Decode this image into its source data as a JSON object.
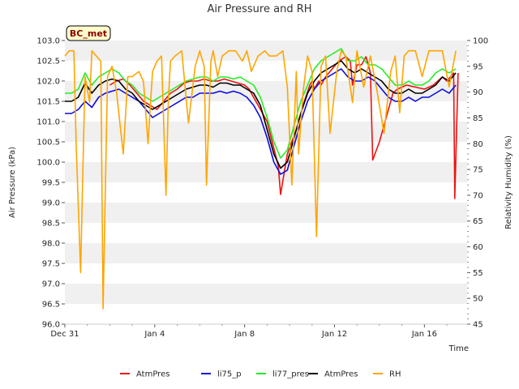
{
  "chart_data": {
    "type": "line",
    "title": "Air Pressure and RH",
    "badge": "BC_met",
    "xlabel": "Time",
    "ylabel": "Air Pressure (kPa)",
    "y2label": "Relativity Humidity (%)",
    "x_ticks": [
      {
        "label": "Dec 31",
        "day": 0
      },
      {
        "label": "Jan 4",
        "day": 4
      },
      {
        "label": "Jan 8",
        "day": 8
      },
      {
        "label": "Jan 12",
        "day": 12
      },
      {
        "label": "Jan 16",
        "day": 16
      }
    ],
    "xlim": [
      0,
      17.9
    ],
    "ylim": [
      96.0,
      103.0
    ],
    "y_ticks": [
      "96.0",
      "96.5",
      "97.0",
      "97.5",
      "98.0",
      "98.5",
      "99.0",
      "99.5",
      "100.0",
      "100.5",
      "101.0",
      "101.5",
      "102.0",
      "102.5",
      "103.0"
    ],
    "y2lim": [
      45,
      100
    ],
    "y2_ticks": [
      "45",
      "50",
      "55",
      "60",
      "65",
      "70",
      "75",
      "80",
      "85",
      "90",
      "95",
      "100"
    ],
    "grid": "horizontal bands",
    "legend_position": "bottom",
    "series": [
      {
        "name": "AtmPres",
        "axis": "left",
        "color": "#ee1111",
        "x": [
          2.0,
          2.3,
          2.6,
          2.9,
          3.2,
          3.5,
          3.8,
          4.1,
          4.4,
          4.7,
          5.0,
          5.3,
          5.6,
          5.9,
          6.2,
          6.5,
          6.8,
          7.1,
          7.4,
          7.7,
          8.0,
          8.2,
          9.0,
          9.5,
          9.6,
          9.9,
          10.3,
          10.6,
          10.9,
          11.0,
          11.1,
          11.3,
          11.4,
          11.6,
          11.9,
          12.2,
          12.5,
          12.7,
          12.8,
          13.0,
          13.2,
          13.4,
          13.6,
          13.7,
          14.0,
          14.6,
          14.8,
          15.2,
          15.6,
          16.0,
          16.4,
          16.8,
          17.0,
          17.3,
          17.35,
          17.5
        ],
        "y": [
          101.9,
          102.0,
          102.05,
          101.9,
          101.7,
          101.5,
          101.4,
          101.3,
          101.5,
          101.7,
          101.8,
          101.95,
          102.0,
          102.0,
          102.05,
          102.0,
          102.0,
          102.05,
          102.0,
          101.95,
          101.9,
          101.8,
          101.0,
          99.9,
          99.2,
          100.2,
          100.8,
          101.4,
          101.9,
          102.0,
          101.8,
          102.0,
          101.9,
          102.1,
          102.3,
          102.5,
          102.6,
          102.5,
          101.9,
          102.4,
          102.4,
          102.6,
          102.2,
          100.05,
          100.5,
          101.7,
          101.8,
          101.9,
          101.85,
          101.8,
          101.9,
          102.1,
          102.0,
          102.2,
          99.1,
          102.2
        ]
      },
      {
        "name": "li75_p",
        "axis": "left",
        "color": "#0a0ae0",
        "x": [
          0.0,
          0.3,
          0.6,
          0.9,
          1.2,
          1.5,
          1.8,
          2.1,
          2.4,
          2.7,
          3.0,
          3.3,
          3.6,
          3.9,
          4.2,
          4.5,
          4.8,
          5.1,
          5.4,
          5.7,
          6.0,
          6.3,
          6.6,
          6.9,
          7.2,
          7.5,
          7.8,
          8.1,
          8.4,
          8.7,
          9.0,
          9.3,
          9.6,
          9.9,
          10.2,
          10.5,
          10.8,
          11.1,
          11.4,
          11.7,
          12.0,
          12.3,
          12.6,
          12.9,
          13.2,
          13.5,
          13.8,
          14.1,
          14.4,
          14.7,
          15.0,
          15.3,
          15.6,
          15.9,
          16.2,
          16.5,
          16.8,
          17.1,
          17.4
        ],
        "y": [
          101.2,
          101.2,
          101.3,
          101.5,
          101.35,
          101.6,
          101.7,
          101.75,
          101.8,
          101.7,
          101.6,
          101.5,
          101.3,
          101.1,
          101.2,
          101.3,
          101.4,
          101.5,
          101.6,
          101.6,
          101.7,
          101.7,
          101.7,
          101.75,
          101.7,
          101.75,
          101.7,
          101.6,
          101.4,
          101.1,
          100.6,
          100.0,
          99.7,
          99.8,
          100.4,
          101.0,
          101.5,
          101.8,
          102.0,
          102.1,
          102.2,
          102.3,
          102.1,
          102.0,
          102.0,
          102.1,
          102.0,
          101.8,
          101.6,
          101.5,
          101.5,
          101.6,
          101.5,
          101.6,
          101.6,
          101.7,
          101.8,
          101.7,
          101.9
        ]
      },
      {
        "name": "li77_pres",
        "axis": "left",
        "color": "#22ee22",
        "x": [
          0.0,
          0.3,
          0.6,
          0.9,
          1.2,
          1.5,
          1.8,
          2.1,
          2.4,
          2.7,
          3.0,
          3.3,
          3.6,
          3.9,
          4.2,
          4.5,
          4.8,
          5.1,
          5.4,
          5.7,
          6.0,
          6.3,
          6.6,
          6.9,
          7.2,
          7.5,
          7.8,
          8.1,
          8.4,
          8.7,
          9.0,
          9.3,
          9.6,
          9.9,
          10.2,
          10.5,
          10.8,
          11.1,
          11.4,
          11.7,
          12.0,
          12.3,
          12.6,
          12.9,
          13.2,
          13.5,
          13.8,
          14.1,
          14.4,
          14.7,
          15.0,
          15.3,
          15.6,
          15.9,
          16.2,
          16.5,
          16.8,
          17.1,
          17.4
        ],
        "y": [
          101.7,
          101.7,
          101.8,
          102.2,
          101.9,
          102.1,
          102.2,
          102.3,
          102.2,
          102.0,
          101.9,
          101.7,
          101.6,
          101.5,
          101.6,
          101.7,
          101.8,
          101.9,
          102.0,
          102.05,
          102.1,
          102.1,
          102.0,
          102.1,
          102.1,
          102.05,
          102.1,
          102.0,
          101.9,
          101.6,
          101.1,
          100.5,
          100.1,
          100.3,
          100.9,
          101.5,
          101.9,
          102.3,
          102.5,
          102.6,
          102.7,
          102.8,
          102.5,
          102.5,
          102.6,
          102.4,
          102.4,
          102.3,
          102.1,
          101.9,
          101.9,
          102.0,
          101.9,
          101.9,
          102.0,
          102.2,
          102.3,
          102.2,
          102.3
        ]
      },
      {
        "name": "AtmPres",
        "axis": "left",
        "color": "#000000",
        "x": [
          0.0,
          0.3,
          0.6,
          0.9,
          1.2,
          1.5,
          1.8,
          2.1,
          2.4,
          2.7,
          3.0,
          3.3,
          3.6,
          3.9,
          4.2,
          4.5,
          4.8,
          5.1,
          5.4,
          5.7,
          6.0,
          6.3,
          6.6,
          6.9,
          7.2,
          7.5,
          7.8,
          8.1,
          8.4,
          8.7,
          9.0,
          9.3,
          9.6,
          9.9,
          10.2,
          10.5,
          10.8,
          11.1,
          11.4,
          11.7,
          12.0,
          12.3,
          12.6,
          12.9,
          13.2,
          13.5,
          13.8,
          14.1,
          14.4,
          14.7,
          15.0,
          15.3,
          15.6,
          15.9,
          16.2,
          16.5,
          16.8,
          17.1,
          17.4
        ],
        "y": [
          101.5,
          101.5,
          101.6,
          101.95,
          101.7,
          101.9,
          102.0,
          102.05,
          102.0,
          101.8,
          101.7,
          101.5,
          101.4,
          101.3,
          101.4,
          101.5,
          101.6,
          101.7,
          101.8,
          101.85,
          101.9,
          101.9,
          101.85,
          101.95,
          101.95,
          101.9,
          101.9,
          101.8,
          101.7,
          101.4,
          100.8,
          100.2,
          99.85,
          100.0,
          100.6,
          101.2,
          101.7,
          102.0,
          102.2,
          102.3,
          102.4,
          102.5,
          102.3,
          102.2,
          102.3,
          102.2,
          102.1,
          102.0,
          101.8,
          101.7,
          101.7,
          101.8,
          101.7,
          101.7,
          101.8,
          101.9,
          102.1,
          102.0,
          102.2
        ]
      },
      {
        "name": "RH",
        "axis": "right",
        "color": "#ffa500",
        "x": [
          0.0,
          0.2,
          0.4,
          0.5,
          0.7,
          0.8,
          0.9,
          1.1,
          1.2,
          1.4,
          1.6,
          1.7,
          1.9,
          2.1,
          2.3,
          2.6,
          2.8,
          3.0,
          3.3,
          3.5,
          3.7,
          3.9,
          4.1,
          4.3,
          4.5,
          4.6,
          4.7,
          4.9,
          5.2,
          5.5,
          5.8,
          6.0,
          6.2,
          6.3,
          6.5,
          6.6,
          6.8,
          7.0,
          7.3,
          7.6,
          7.9,
          8.1,
          8.3,
          8.6,
          8.9,
          9.1,
          9.4,
          9.7,
          9.9,
          10.1,
          10.3,
          10.4,
          10.6,
          10.8,
          11.0,
          11.2,
          11.4,
          11.6,
          11.8,
          12.1,
          12.3,
          12.5,
          12.8,
          13.0,
          13.3,
          13.6,
          13.9,
          14.2,
          14.5,
          14.7,
          14.9,
          15.1,
          15.3,
          15.6,
          15.9,
          16.2,
          16.5,
          16.8,
          17.1,
          17.4
        ],
        "y": [
          97,
          98,
          98,
          80,
          55,
          75,
          93,
          88,
          98,
          97,
          96,
          48,
          93,
          95,
          90,
          78,
          93,
          93,
          94,
          92,
          80,
          94,
          96,
          97,
          70,
          88,
          96,
          97,
          98,
          84,
          95,
          98,
          95,
          72,
          96,
          98,
          93,
          97,
          98,
          98,
          96,
          98,
          94,
          97,
          98,
          97,
          97,
          98,
          91,
          72,
          94,
          78,
          90,
          97,
          94,
          62,
          95,
          97,
          82,
          94,
          98,
          97,
          88,
          98,
          91,
          97,
          90,
          82,
          94,
          97,
          86,
          97,
          98,
          98,
          93,
          98,
          98,
          98,
          91,
          98
        ]
      }
    ]
  }
}
